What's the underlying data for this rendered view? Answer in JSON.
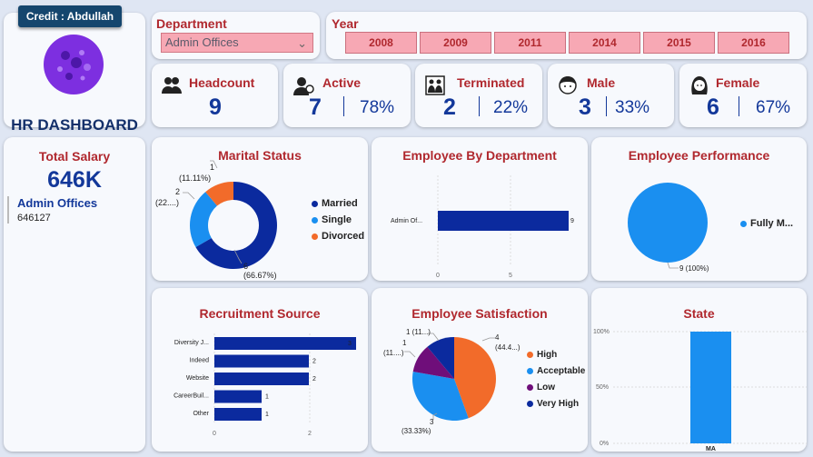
{
  "credit": "Credit : Abdullah",
  "dashboard_title": "HR DASHBOARD",
  "filters": {
    "department_label": "Department",
    "department_value": "Admin Offices",
    "year_label": "Year",
    "years": [
      "2008",
      "2009",
      "2011",
      "2014",
      "2015",
      "2016"
    ]
  },
  "kpis": {
    "headcount": {
      "label": "Headcount",
      "value": "9"
    },
    "active": {
      "label": "Active",
      "value": "7",
      "pct": "78%"
    },
    "terminated": {
      "label": "Terminated",
      "value": "2",
      "pct": "22%"
    },
    "male": {
      "label": "Male",
      "value": "3",
      "pct": "33%"
    },
    "female": {
      "label": "Female",
      "value": "6",
      "pct": "67%"
    }
  },
  "total_salary": {
    "label": "Total Salary",
    "value": "646K",
    "dept": "Admin Offices",
    "amount": "646127"
  },
  "colors": {
    "navy": "#0b2a9e",
    "blue": "#1a8ff0",
    "orange": "#f26b2a",
    "purple": "#6f0e7a",
    "title_red": "#b0282e",
    "filter_pink": "#f7a8b4"
  },
  "marital": {
    "title": "Marital Status",
    "legend": [
      "Married",
      "Single",
      "Divorced"
    ],
    "label_married": [
      "6",
      "(66.67%)"
    ],
    "label_single": [
      "2",
      "(22....)"
    ],
    "label_divorced": [
      "1",
      "(11.11%)"
    ]
  },
  "department_chart": {
    "title": "Employee By Department",
    "category": "Admin Of...",
    "value_label": "9",
    "ticks": [
      "0",
      "5"
    ]
  },
  "performance": {
    "title": "Employee Performance",
    "legend": "Fully M...",
    "label": "9 (100%)"
  },
  "recruitment": {
    "title": "Recruitment Source",
    "ticks": [
      "0",
      "2"
    ]
  },
  "satisfaction": {
    "title": "Employee Satisfaction",
    "legend": [
      "High",
      "Acceptable",
      "Low",
      "Very High"
    ],
    "label_high": [
      "4",
      "(44.4...)"
    ],
    "label_acceptable": [
      "3",
      "(33.33%)"
    ],
    "label_low": [
      "1",
      "(11....)"
    ],
    "label_very_high": [
      "1 (11...)"
    ]
  },
  "state": {
    "title": "State",
    "ticks": [
      "100%",
      "50%",
      "0%"
    ],
    "category": "MA"
  },
  "chart_data": [
    {
      "type": "pie",
      "title": "Marital Status",
      "categories": [
        "Married",
        "Single",
        "Divorced"
      ],
      "values": [
        6,
        2,
        1
      ]
    },
    {
      "type": "bar",
      "title": "Employee By Department",
      "categories": [
        "Admin Of..."
      ],
      "values": [
        9
      ],
      "xlim": [
        0,
        9
      ]
    },
    {
      "type": "pie",
      "title": "Employee Performance",
      "categories": [
        "Fully M..."
      ],
      "values": [
        9
      ]
    },
    {
      "type": "bar",
      "title": "Recruitment Source",
      "categories": [
        "Diversity J...",
        "Indeed",
        "Website",
        "CareerBuil...",
        "Other"
      ],
      "values": [
        3,
        2,
        2,
        1,
        1
      ],
      "xlim": [
        0,
        3
      ]
    },
    {
      "type": "pie",
      "title": "Employee Satisfaction",
      "categories": [
        "High",
        "Acceptable",
        "Low",
        "Very High"
      ],
      "values": [
        4,
        3,
        1,
        1
      ]
    },
    {
      "type": "bar",
      "title": "State",
      "categories": [
        "MA"
      ],
      "values": [
        100
      ],
      "ylim": [
        0,
        100
      ]
    }
  ]
}
